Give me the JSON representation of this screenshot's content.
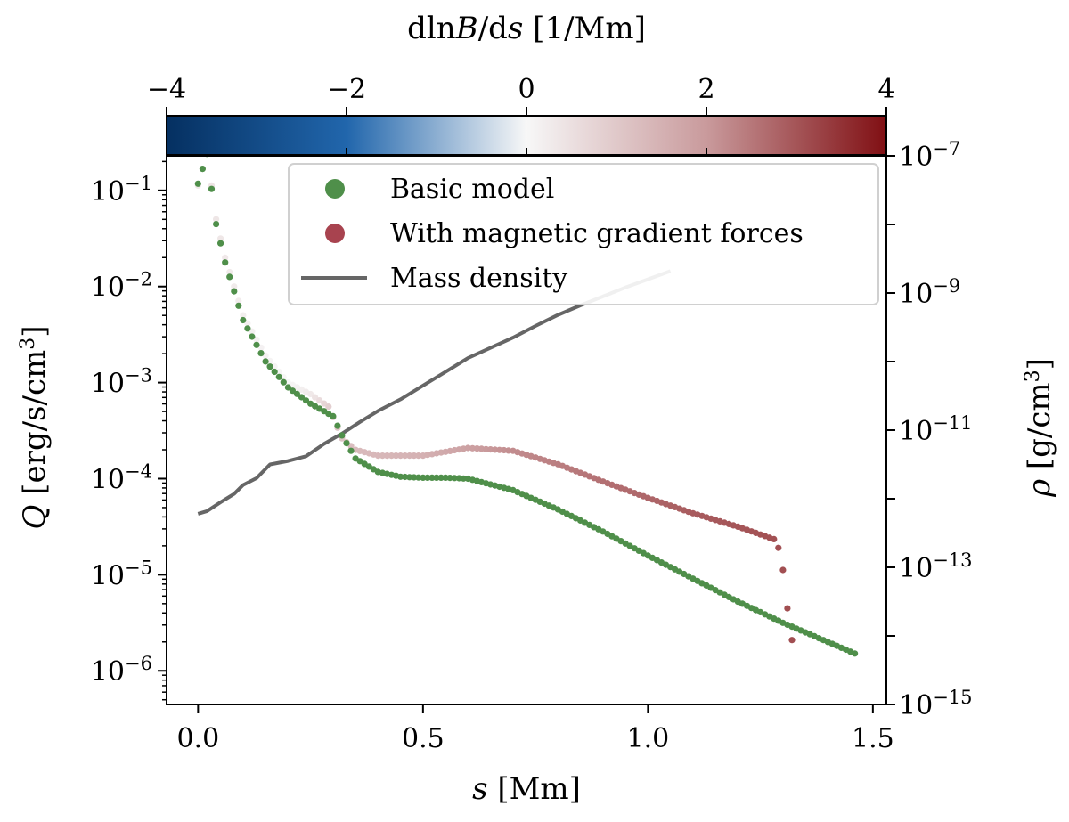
{
  "chart_data": {
    "type": "scatter",
    "x_axis": {
      "label": "s [Mm]",
      "range": [
        -0.07,
        1.53
      ],
      "ticks": [
        0.0,
        0.5,
        1.0,
        1.5
      ],
      "tick_labels": [
        "0.0",
        "0.5",
        "1.0",
        "1.5"
      ]
    },
    "y_axis_left": {
      "label": "Q [erg/s/cm3]",
      "scale": "log",
      "range_exp": [
        -6.35,
        -0.64
      ],
      "ticks_exp": [
        -1,
        -2,
        -3,
        -4,
        -5,
        -6
      ],
      "tick_labels": [
        "10-1",
        "10-2",
        "10-3",
        "10-4",
        "10-5",
        "10-6"
      ]
    },
    "y_axis_right": {
      "label": "ρ [g/cm3]",
      "scale": "log",
      "range_exp": [
        -15,
        -7
      ],
      "ticks_exp": [
        -7,
        -9,
        -11,
        -13,
        -15
      ],
      "tick_labels": [
        "10-7",
        "10-9",
        "10-11",
        "10-13",
        "10-15"
      ]
    },
    "colorbar": {
      "label": "dlnB/ds [1/Mm]",
      "range": [
        -4,
        4
      ],
      "ticks": [
        -4,
        -2,
        0,
        2,
        4
      ],
      "tick_labels": [
        "−4",
        "−2",
        "0",
        "2",
        "4"
      ],
      "colors": [
        "#053061",
        "#2166ac",
        "#f7f7f7",
        "#c99a9c",
        "#800f13"
      ]
    },
    "legend": {
      "position": "top-center",
      "entries": [
        {
          "label": "Basic model",
          "marker": "dot",
          "color": "#4f8f4a"
        },
        {
          "label": "With magnetic gradient forces",
          "marker": "dot",
          "color": "#a8434f"
        },
        {
          "label": "Mass density",
          "marker": "line",
          "color": "#666666"
        }
      ]
    },
    "series": [
      {
        "name": "Basic model",
        "color": "#4f8f4a",
        "x_start": 0.0,
        "x_end": 1.46,
        "n_points": 147,
        "log_profile": [
          [
            0.0,
            -0.93
          ],
          [
            0.02,
            -0.62
          ],
          [
            0.04,
            -1.35
          ],
          [
            0.06,
            -1.75
          ],
          [
            0.1,
            -2.35
          ],
          [
            0.15,
            -2.78
          ],
          [
            0.2,
            -3.05
          ],
          [
            0.25,
            -3.22
          ],
          [
            0.3,
            -3.35
          ],
          [
            0.32,
            -3.55
          ],
          [
            0.35,
            -3.79
          ],
          [
            0.4,
            -3.93
          ],
          [
            0.45,
            -3.98
          ],
          [
            0.5,
            -3.99
          ],
          [
            0.55,
            -3.99
          ],
          [
            0.6,
            -4.0
          ],
          [
            0.7,
            -4.12
          ],
          [
            0.8,
            -4.32
          ],
          [
            0.9,
            -4.55
          ],
          [
            1.0,
            -4.8
          ],
          [
            1.1,
            -5.04
          ],
          [
            1.2,
            -5.28
          ],
          [
            1.3,
            -5.5
          ],
          [
            1.4,
            -5.7
          ],
          [
            1.46,
            -5.82
          ]
        ]
      },
      {
        "name": "With magnetic gradient forces",
        "x_start": 0.0,
        "x_end": 1.32,
        "n_points": 133,
        "log_profile": [
          [
            0.0,
            -0.95
          ],
          [
            0.02,
            -0.6
          ],
          [
            0.04,
            -1.3
          ],
          [
            0.06,
            -1.7
          ],
          [
            0.1,
            -2.3
          ],
          [
            0.15,
            -2.72
          ],
          [
            0.2,
            -3.0
          ],
          [
            0.25,
            -3.12
          ],
          [
            0.29,
            -3.25
          ],
          [
            0.32,
            -3.58
          ],
          [
            0.35,
            -3.7
          ],
          [
            0.4,
            -3.76
          ],
          [
            0.45,
            -3.76
          ],
          [
            0.5,
            -3.76
          ],
          [
            0.55,
            -3.72
          ],
          [
            0.6,
            -3.68
          ],
          [
            0.7,
            -3.71
          ],
          [
            0.8,
            -3.85
          ],
          [
            0.9,
            -4.03
          ],
          [
            1.0,
            -4.2
          ],
          [
            1.1,
            -4.36
          ],
          [
            1.2,
            -4.5
          ],
          [
            1.28,
            -4.63
          ],
          [
            1.29,
            -4.72
          ],
          [
            1.3,
            -4.95
          ],
          [
            1.31,
            -5.35
          ],
          [
            1.32,
            -5.68
          ]
        ],
        "colorbar_value_profile": [
          [
            0.0,
            0.3
          ],
          [
            0.03,
            0.4
          ],
          [
            0.1,
            0.2
          ],
          [
            0.2,
            0.0
          ],
          [
            0.25,
            0.3
          ],
          [
            0.3,
            1.0
          ],
          [
            0.35,
            1.3
          ],
          [
            0.5,
            1.5
          ],
          [
            0.7,
            2.2
          ],
          [
            0.9,
            2.6
          ],
          [
            1.1,
            2.9
          ],
          [
            1.32,
            3.1
          ]
        ]
      },
      {
        "name": "Mass density",
        "color": "#666666",
        "axis": "right",
        "points": [
          [
            0.0,
            -12.22
          ],
          [
            0.02,
            -12.18
          ],
          [
            0.05,
            -12.05
          ],
          [
            0.08,
            -11.93
          ],
          [
            0.1,
            -11.8
          ],
          [
            0.13,
            -11.7
          ],
          [
            0.16,
            -11.5
          ],
          [
            0.2,
            -11.45
          ],
          [
            0.24,
            -11.38
          ],
          [
            0.28,
            -11.2
          ],
          [
            0.32,
            -11.05
          ],
          [
            0.36,
            -10.88
          ],
          [
            0.4,
            -10.72
          ],
          [
            0.45,
            -10.55
          ],
          [
            0.5,
            -10.35
          ],
          [
            0.55,
            -10.15
          ],
          [
            0.6,
            -9.95
          ],
          [
            0.65,
            -9.8
          ],
          [
            0.7,
            -9.65
          ],
          [
            0.75,
            -9.48
          ],
          [
            0.8,
            -9.32
          ],
          [
            0.85,
            -9.18
          ],
          [
            0.9,
            -9.05
          ],
          [
            0.95,
            -8.92
          ],
          [
            1.0,
            -8.8
          ],
          [
            1.05,
            -8.68
          ]
        ]
      }
    ]
  }
}
